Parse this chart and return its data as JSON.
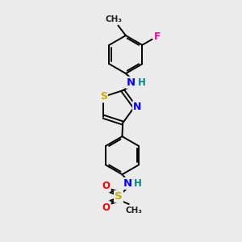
{
  "bg_color": "#ebebeb",
  "bond_color": "#000000",
  "bond_width": 1.4,
  "atom_colors": {
    "N": "#0000ff",
    "S": "#ccaa00",
    "O": "#ff0000",
    "F": "#ff00aa",
    "C": "#000000",
    "H": "#008888"
  },
  "font_size": 8.5
}
